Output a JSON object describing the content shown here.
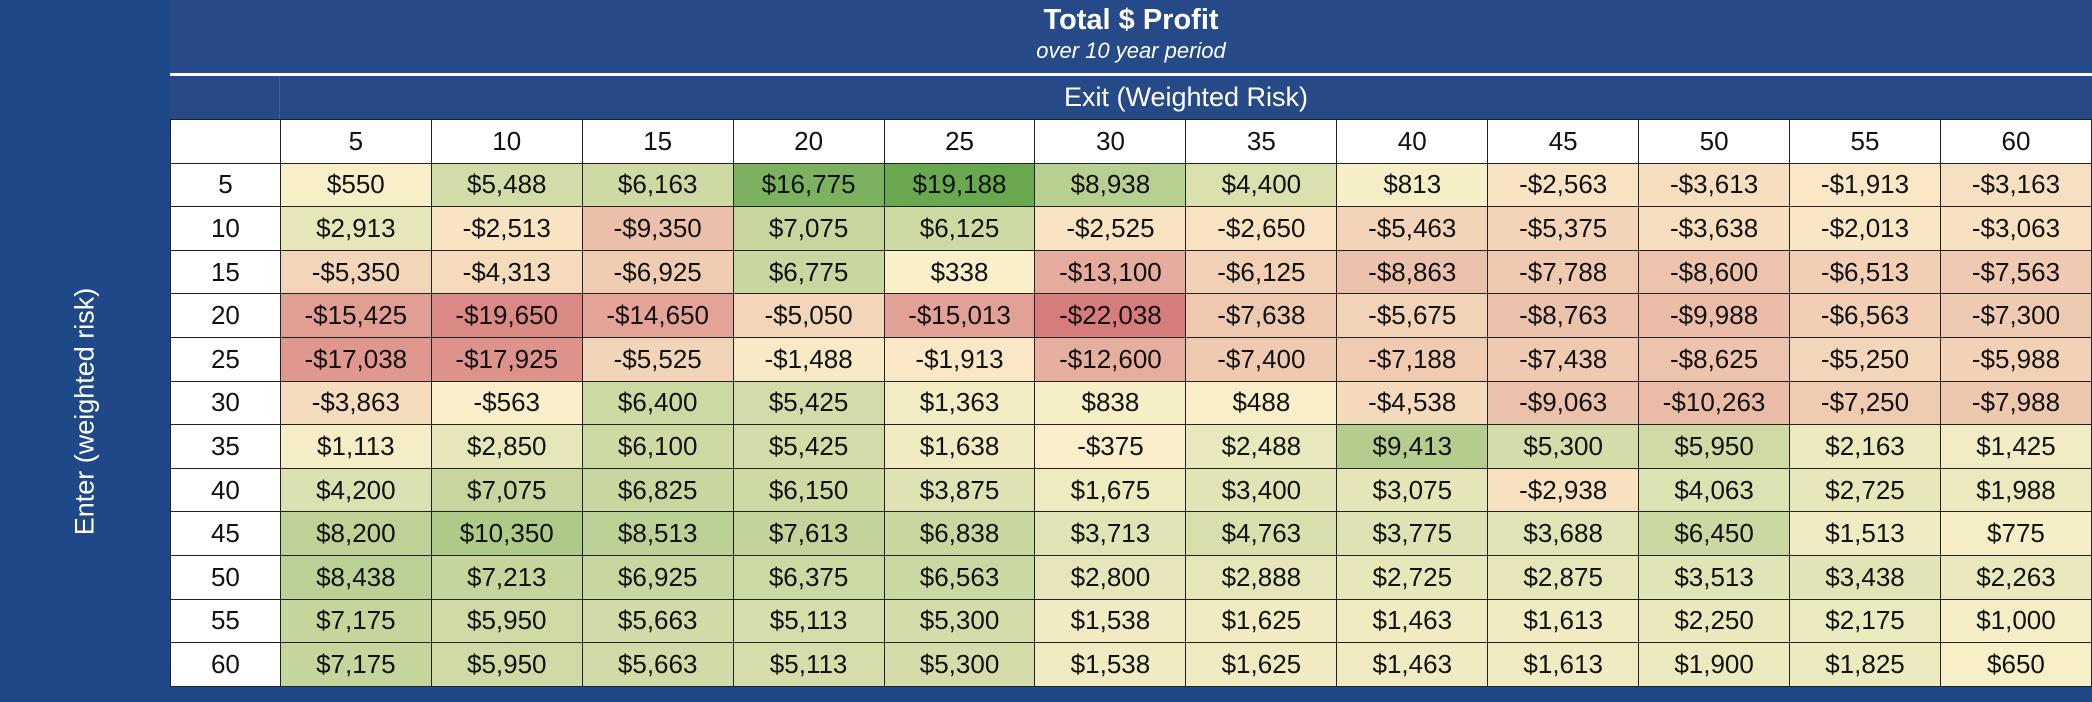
{
  "title": "Total $ Profit",
  "subtitle": "over 10 year period",
  "colors": {
    "header_bg": "#264a87",
    "side_bg": "#1f4888",
    "neg_max": "#d67c7c",
    "mid": "#fcf1cc",
    "pos_max": "#6aa84f"
  },
  "chart_data": {
    "type": "heatmap",
    "title": "Total $ Profit",
    "subtitle": "over 10 year period",
    "xlabel": "Exit (Weighted Risk)",
    "ylabel": "Enter (weighted risk)",
    "x": [
      5,
      10,
      15,
      20,
      25,
      30,
      35,
      40,
      45,
      50,
      55,
      60
    ],
    "y": [
      5,
      10,
      15,
      20,
      25,
      30,
      35,
      40,
      45,
      50,
      55,
      60
    ],
    "values": [
      [
        550,
        5488,
        6163,
        16775,
        19188,
        8938,
        4400,
        813,
        -2563,
        -3613,
        -1913,
        -3163
      ],
      [
        2913,
        -2513,
        -9350,
        7075,
        6125,
        -2525,
        -2650,
        -5463,
        -5375,
        -3638,
        -2013,
        -3063
      ],
      [
        -5350,
        -4313,
        -6925,
        6775,
        338,
        -13100,
        -6125,
        -8863,
        -7788,
        -8600,
        -6513,
        -7563
      ],
      [
        -15425,
        -19650,
        -14650,
        -5050,
        -15013,
        -22038,
        -7638,
        -5675,
        -8763,
        -9988,
        -6563,
        -7300
      ],
      [
        -17038,
        -17925,
        -5525,
        -1488,
        -1913,
        -12600,
        -7400,
        -7188,
        -7438,
        -8625,
        -5250,
        -5988
      ],
      [
        -3863,
        -563,
        6400,
        5425,
        1363,
        838,
        488,
        -4538,
        -9063,
        -10263,
        -7250,
        -7988
      ],
      [
        1113,
        2850,
        6100,
        5425,
        1638,
        -375,
        2488,
        9413,
        5300,
        5950,
        2163,
        1425
      ],
      [
        4200,
        7075,
        6825,
        6150,
        3875,
        1675,
        3400,
        3075,
        -2938,
        4063,
        2725,
        1988
      ],
      [
        8200,
        10350,
        8513,
        7613,
        6838,
        3713,
        4763,
        3775,
        3688,
        6450,
        1513,
        775
      ],
      [
        8438,
        7213,
        6925,
        6375,
        6563,
        2800,
        2888,
        2725,
        2875,
        3513,
        3438,
        2263
      ],
      [
        7175,
        5950,
        5663,
        5113,
        5300,
        1538,
        1625,
        1463,
        1613,
        2250,
        2175,
        1000
      ],
      [
        7175,
        5950,
        5663,
        5113,
        5300,
        1538,
        1625,
        1463,
        1613,
        1900,
        1825,
        650
      ]
    ],
    "value_format": "currency-dollars-no-decimals",
    "color_scale": "red (negative) - cream (zero) - green (positive)",
    "legend": "none"
  }
}
